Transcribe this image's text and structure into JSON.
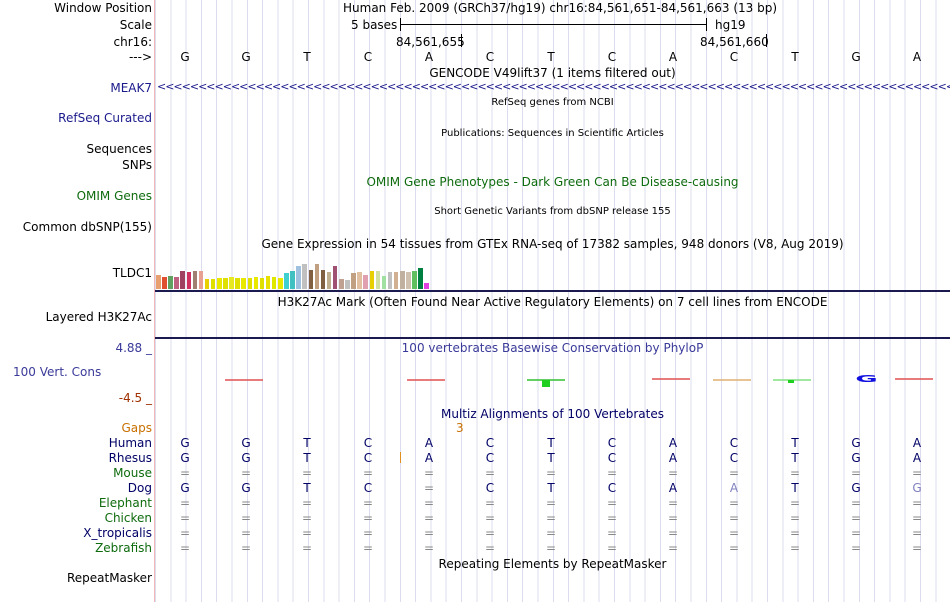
{
  "header": {
    "window_position_label": "Window Position",
    "window_position_text": "Human Feb. 2009 (GRCh37/hg19)   chr16:84,561,651-84,561,663 (13 bp)",
    "scale_label": "Scale",
    "scale_text": "5 bases",
    "scale_assembly": "hg19",
    "chrom_label": "chr16:",
    "coord1": "84,561,655",
    "coord2": "84,561,660",
    "strand_label": "--->"
  },
  "bases": [
    "G",
    "G",
    "T",
    "C",
    "A",
    "C",
    "T",
    "C",
    "A",
    "C",
    "T",
    "G",
    "A"
  ],
  "tracks": {
    "gencode_title": "GENCODE V49lift37 (1 items filtered out)",
    "gencode_gene": "MEAK7",
    "refseq_title": "RefSeq genes from NCBI",
    "refseq_label": "RefSeq Curated",
    "pubs_title": "Publications: Sequences in Scientific Articles",
    "pubs_label": "Sequences",
    "snps_label": "SNPs",
    "omim_title": "OMIM Gene Phenotypes - Dark Green Can Be Disease-causing",
    "omim_label": "OMIM Genes",
    "dbsnp_title": "Short Genetic Variants from dbSNP release 155",
    "dbsnp_label": "Common dbSNP(155)",
    "gtex_title": "Gene Expression in 54 tissues from GTEx RNA-seq of 17382 samples, 948 donors (V8, Aug 2019)",
    "gtex_label": "TLDC1",
    "h3k27ac_title": "H3K27Ac Mark (Often Found Near Active Regulatory Elements) on 7 cell lines from ENCODE",
    "h3k27ac_label": "Layered H3K27Ac",
    "cons_title": "100 vertebrates Basewise Conservation by PhyloP",
    "cons_label": "100 Vert. Cons",
    "cons_max": "4.88 _",
    "cons_min": "-4.5 _",
    "multiz_title": "Multiz Alignments of 100 Vertebrates",
    "gaps_label": "Gaps",
    "gaps_value": "3",
    "repeat_title": "Repeating Elements by RepeatMasker",
    "repeat_label": "RepeatMasker"
  },
  "alignment": [
    {
      "species": "Human",
      "color": "#000066",
      "bases": [
        "G",
        "G",
        "T",
        "C",
        "A",
        "C",
        "T",
        "C",
        "A",
        "C",
        "T",
        "G",
        "A"
      ]
    },
    {
      "species": "Rhesus",
      "color": "#000066",
      "bases": [
        "G",
        "G",
        "T",
        "C",
        "A",
        "C",
        "T",
        "C",
        "A",
        "C",
        "T",
        "G",
        "A"
      ]
    },
    {
      "species": "Mouse",
      "color": "#0e6b0e",
      "bases": [
        "=",
        "=",
        "=",
        "=",
        "=",
        "=",
        "=",
        "=",
        "=",
        "=",
        "=",
        "=",
        "="
      ]
    },
    {
      "species": "Dog",
      "color": "#000066",
      "bases": [
        "G",
        "G",
        "T",
        "C",
        "=",
        "C",
        "T",
        "C",
        "A",
        "A",
        "T",
        "G",
        "G"
      ]
    },
    {
      "species": "Elephant",
      "color": "#0e6b0e",
      "bases": [
        "=",
        "=",
        "=",
        "=",
        "=",
        "=",
        "=",
        "=",
        "=",
        "=",
        "=",
        "=",
        "="
      ]
    },
    {
      "species": "Chicken",
      "color": "#0e6b0e",
      "bases": [
        "=",
        "=",
        "=",
        "=",
        "=",
        "=",
        "=",
        "=",
        "=",
        "=",
        "=",
        "=",
        "="
      ]
    },
    {
      "species": "X_tropicalis",
      "color": "#000066",
      "bases": [
        "=",
        "=",
        "=",
        "=",
        "=",
        "=",
        "=",
        "=",
        "=",
        "=",
        "=",
        "=",
        "="
      ]
    },
    {
      "species": "Zebrafish",
      "color": "#0e6b0e",
      "bases": [
        "=",
        "=",
        "=",
        "=",
        "=",
        "=",
        "=",
        "=",
        "=",
        "=",
        "=",
        "=",
        "="
      ]
    }
  ],
  "gtex_colors": [
    "#e8a070",
    "#e05030",
    "#60a060",
    "#c06080",
    "#a04060",
    "#d03060",
    "#a08070",
    "#e8a090",
    "#e8d000",
    "#e0e000",
    "#e8e800",
    "#e0e000",
    "#e8e820",
    "#e0e000",
    "#e8e800",
    "#e0e000",
    "#e8e800",
    "#e0e000",
    "#e8e000",
    "#e0e800",
    "#e8e800",
    "#40d0d0",
    "#40c0c0",
    "#a0c0e0",
    "#c0c0c0",
    "#806040",
    "#c0a080",
    "#806040",
    "#c0b090",
    "#a05070",
    "#c0a090",
    "#c0c0c0",
    "#c0a080",
    "#e0c0a0",
    "#e0a0b0",
    "#e8d000",
    "#d0e0a0",
    "#a0e0a0",
    "#c0c0c0",
    "#d0b090",
    "#c0b0a0",
    "#d0c0b0",
    "#60c060",
    "#008040",
    "#e040e0"
  ],
  "gtex_values": [
    0.35,
    0.3,
    0.33,
    0.3,
    0.46,
    0.42,
    0.44,
    0.46,
    0.25,
    0.25,
    0.27,
    0.28,
    0.3,
    0.28,
    0.28,
    0.28,
    0.3,
    0.27,
    0.32,
    0.3,
    0.27,
    0.4,
    0.45,
    0.58,
    0.62,
    0.48,
    0.62,
    0.48,
    0.42,
    0.58,
    0.25,
    0.22,
    0.4,
    0.42,
    0.35,
    0.45,
    0.45,
    0.32,
    0.43,
    0.42,
    0.45,
    0.43,
    0.46,
    0.52,
    0.15
  ]
}
